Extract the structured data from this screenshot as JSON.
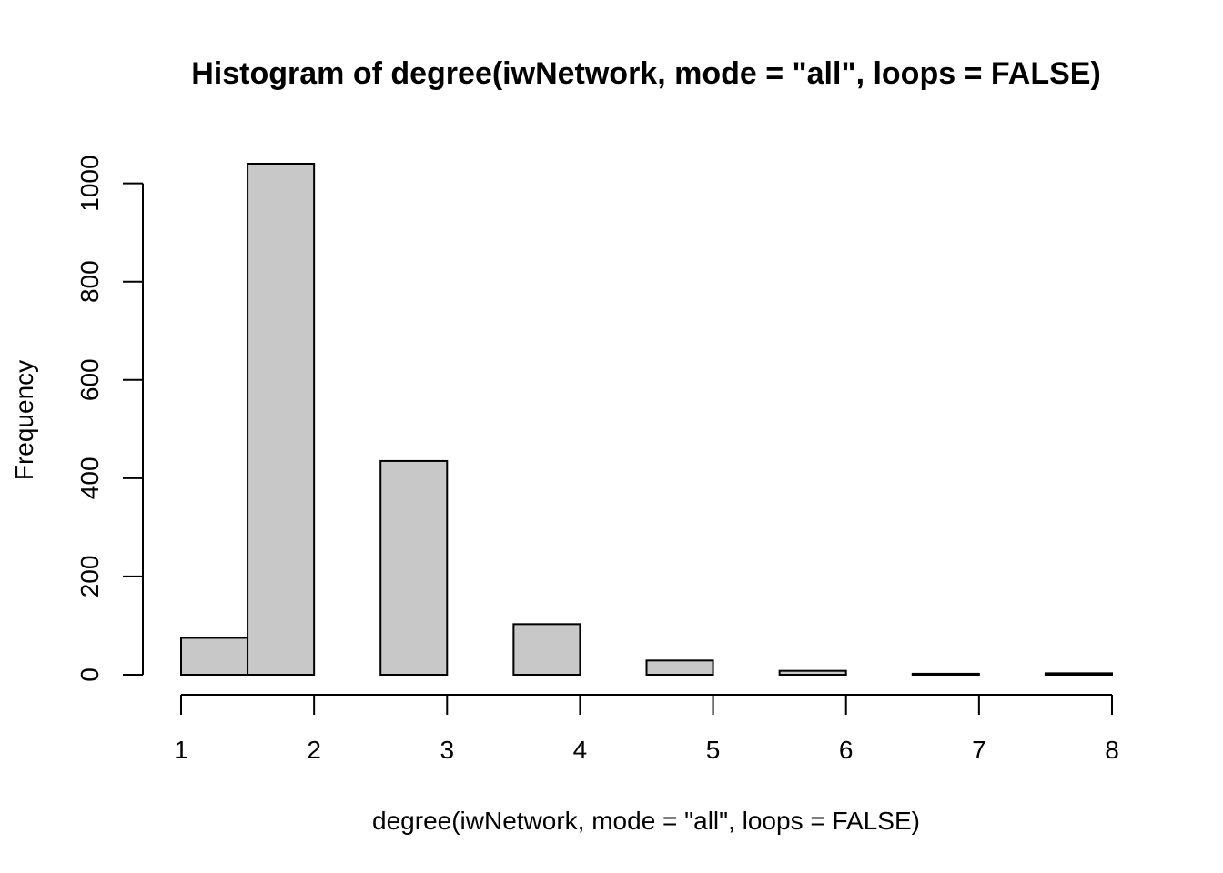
{
  "chart_data": {
    "type": "bar",
    "title": "Histogram of degree(iwNetwork, mode = \"all\", loops = FALSE)",
    "xlabel": "degree(iwNetwork, mode = \"all\", loops = FALSE)",
    "ylabel": "Frequency",
    "bins": [
      {
        "start": 1.0,
        "end": 1.5,
        "value": 75
      },
      {
        "start": 1.5,
        "end": 2.0,
        "value": 1040
      },
      {
        "start": 2.0,
        "end": 2.5,
        "value": 0
      },
      {
        "start": 2.5,
        "end": 3.0,
        "value": 435
      },
      {
        "start": 3.0,
        "end": 3.5,
        "value": 0
      },
      {
        "start": 3.5,
        "end": 4.0,
        "value": 103
      },
      {
        "start": 4.0,
        "end": 4.5,
        "value": 0
      },
      {
        "start": 4.5,
        "end": 5.0,
        "value": 29
      },
      {
        "start": 5.0,
        "end": 5.5,
        "value": 0
      },
      {
        "start": 5.5,
        "end": 6.0,
        "value": 8
      },
      {
        "start": 6.0,
        "end": 6.5,
        "value": 0
      },
      {
        "start": 6.5,
        "end": 7.0,
        "value": 2
      },
      {
        "start": 7.0,
        "end": 7.5,
        "value": 0
      },
      {
        "start": 7.5,
        "end": 8.0,
        "value": 3
      }
    ],
    "xlim": [
      1,
      8
    ],
    "ylim": [
      0,
      1040
    ],
    "x_ticks": [
      1,
      2,
      3,
      4,
      5,
      6,
      7,
      8
    ],
    "y_ticks": [
      0,
      200,
      400,
      600,
      800,
      1000
    ],
    "bar_color": "#c8c8c8",
    "grid": false,
    "legend": "none"
  }
}
